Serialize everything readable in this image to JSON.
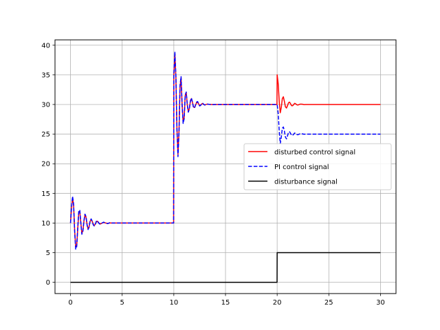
{
  "chart_data": {
    "type": "line",
    "title": "",
    "xlabel": "",
    "ylabel": "",
    "xlim": [
      -1.5,
      31.5
    ],
    "ylim": [
      -1.9,
      40.9
    ],
    "xticks": [
      0,
      5,
      10,
      15,
      20,
      25,
      30
    ],
    "yticks": [
      0,
      5,
      10,
      15,
      20,
      25,
      30,
      35,
      40
    ],
    "grid": true,
    "legend_position": "center-right",
    "series": [
      {
        "name": "disturbed control signal",
        "color": "#ff0000",
        "style": "solid",
        "x": [
          0,
          0.1,
          0.2,
          0.3,
          0.4,
          0.5,
          0.6,
          0.7,
          0.8,
          0.9,
          1.0,
          1.1,
          1.2,
          1.3,
          1.4,
          1.5,
          1.6,
          1.7,
          1.8,
          1.9,
          2.0,
          2.1,
          2.2,
          2.3,
          2.4,
          2.5,
          2.6,
          2.7,
          2.8,
          2.9,
          3.0,
          3.2,
          3.4,
          3.6,
          3.8,
          4.0,
          4.3,
          4.6,
          5.0,
          5.5,
          6,
          8,
          9.98,
          10.0,
          10.1,
          10.2,
          10.3,
          10.4,
          10.5,
          10.6,
          10.7,
          10.8,
          10.9,
          11.0,
          11.1,
          11.2,
          11.3,
          11.4,
          11.5,
          11.6,
          11.7,
          11.8,
          11.9,
          12.0,
          12.1,
          12.2,
          12.3,
          12.4,
          12.5,
          12.6,
          12.7,
          12.8,
          12.9,
          13.0,
          13.2,
          13.4,
          13.6,
          13.8,
          14.0,
          14.3,
          14.6,
          15.0,
          15.5,
          16,
          18,
          19.98,
          20.0,
          20.1,
          20.2,
          20.3,
          20.4,
          20.5,
          20.6,
          20.7,
          20.8,
          20.9,
          21.0,
          21.1,
          21.2,
          21.3,
          21.4,
          21.5,
          21.6,
          21.7,
          21.8,
          21.9,
          22.0,
          22.2,
          22.4,
          22.6,
          22.8,
          23.0,
          23.3,
          23.6,
          24.0,
          24.5,
          25,
          27,
          30
        ],
        "y": [
          10,
          12.5,
          14.3,
          13.0,
          8.8,
          6.0,
          6.2,
          9.0,
          11.8,
          12.0,
          10.0,
          8.3,
          8.7,
          10.3,
          11.4,
          11.0,
          9.8,
          9.0,
          9.4,
          10.3,
          10.6,
          10.3,
          9.8,
          9.6,
          9.8,
          10.2,
          10.3,
          10.1,
          9.9,
          9.85,
          9.95,
          10.1,
          10.0,
          9.95,
          10.02,
          10.0,
          10.0,
          10.0,
          10.0,
          10.0,
          10.0,
          10.0,
          10.0,
          35.0,
          38.6,
          34.5,
          26.0,
          21.6,
          25.5,
          33.0,
          34.5,
          30.0,
          27.0,
          27.8,
          31.5,
          32.0,
          30.0,
          28.8,
          29.3,
          30.5,
          31.0,
          30.4,
          29.6,
          29.5,
          29.9,
          30.3,
          30.4,
          30.1,
          29.8,
          29.9,
          30.1,
          30.15,
          30.0,
          29.95,
          30.05,
          30.02,
          30.0,
          29.99,
          30.0,
          30.0,
          30.0,
          30.0,
          30.0,
          30.0,
          30.0,
          30.0,
          35.0,
          33.5,
          30.5,
          28.6,
          29.5,
          31.0,
          31.3,
          30.5,
          29.6,
          29.4,
          29.8,
          30.3,
          30.4,
          30.1,
          29.8,
          29.8,
          30.0,
          30.2,
          30.1,
          29.95,
          29.9,
          30.05,
          30.05,
          29.98,
          30.0,
          30.0,
          30.0,
          30.0,
          30.0,
          30.0,
          30.0,
          30.0,
          30.0
        ]
      },
      {
        "name": "PI control signal",
        "color": "#0000ff",
        "style": "dashed",
        "x": [
          0,
          0.1,
          0.2,
          0.3,
          0.4,
          0.5,
          0.6,
          0.7,
          0.8,
          0.9,
          1.0,
          1.1,
          1.2,
          1.3,
          1.4,
          1.5,
          1.6,
          1.7,
          1.8,
          1.9,
          2.0,
          2.1,
          2.2,
          2.3,
          2.4,
          2.5,
          2.6,
          2.7,
          2.8,
          2.9,
          3.0,
          3.2,
          3.4,
          3.6,
          3.8,
          4.0,
          4.3,
          4.6,
          5.0,
          5.5,
          6,
          8,
          9.98,
          10.0,
          10.1,
          10.2,
          10.3,
          10.4,
          10.5,
          10.6,
          10.7,
          10.8,
          10.9,
          11.0,
          11.1,
          11.2,
          11.3,
          11.4,
          11.5,
          11.6,
          11.7,
          11.8,
          11.9,
          12.0,
          12.1,
          12.2,
          12.3,
          12.4,
          12.5,
          12.6,
          12.7,
          12.8,
          12.9,
          13.0,
          13.2,
          13.4,
          13.6,
          13.8,
          14.0,
          14.3,
          14.6,
          15.0,
          15.5,
          16,
          18,
          19.98,
          20.0,
          20.1,
          20.2,
          20.3,
          20.4,
          20.5,
          20.6,
          20.7,
          20.8,
          20.9,
          21.0,
          21.1,
          21.2,
          21.3,
          21.4,
          21.5,
          21.6,
          21.7,
          21.8,
          21.9,
          22.0,
          22.2,
          22.4,
          22.6,
          22.8,
          23.0,
          23.3,
          23.6,
          24.0,
          24.5,
          25,
          27,
          30
        ],
        "y": [
          10,
          12.8,
          14.5,
          13.2,
          8.6,
          5.6,
          6.0,
          9.2,
          12.0,
          12.2,
          10.0,
          8.1,
          8.6,
          10.4,
          11.5,
          11.1,
          9.7,
          8.9,
          9.3,
          10.4,
          10.7,
          10.3,
          9.7,
          9.5,
          9.8,
          10.3,
          10.4,
          10.1,
          9.85,
          9.8,
          9.95,
          10.15,
          10.0,
          9.9,
          10.05,
          10.0,
          10.0,
          10.0,
          10.0,
          10.0,
          10.0,
          10.0,
          10.0,
          35.0,
          38.9,
          34.8,
          25.8,
          21.2,
          25.3,
          33.3,
          34.7,
          30.0,
          26.8,
          27.6,
          31.6,
          32.1,
          30.0,
          28.7,
          29.2,
          30.6,
          31.1,
          30.4,
          29.5,
          29.4,
          29.9,
          30.4,
          30.5,
          30.1,
          29.75,
          29.85,
          30.15,
          30.2,
          30.0,
          29.9,
          30.08,
          30.03,
          30.0,
          29.98,
          30.0,
          30.0,
          30.0,
          30.0,
          30.0,
          30.0,
          30.0,
          30.0,
          30.0,
          28.5,
          25.5,
          23.4,
          24.5,
          26.0,
          26.2,
          25.5,
          24.5,
          24.2,
          24.7,
          25.3,
          25.4,
          25.1,
          24.8,
          24.8,
          25.0,
          25.2,
          25.1,
          24.95,
          24.9,
          25.05,
          25.05,
          24.98,
          25.0,
          25.0,
          25.0,
          25.0,
          25.0,
          25.0,
          25.0,
          25.0,
          25.0
        ]
      },
      {
        "name": "disturbance signal",
        "color": "#000000",
        "style": "solid",
        "x": [
          0,
          19.99,
          20.0,
          30
        ],
        "y": [
          0,
          0,
          5,
          5
        ]
      }
    ]
  }
}
